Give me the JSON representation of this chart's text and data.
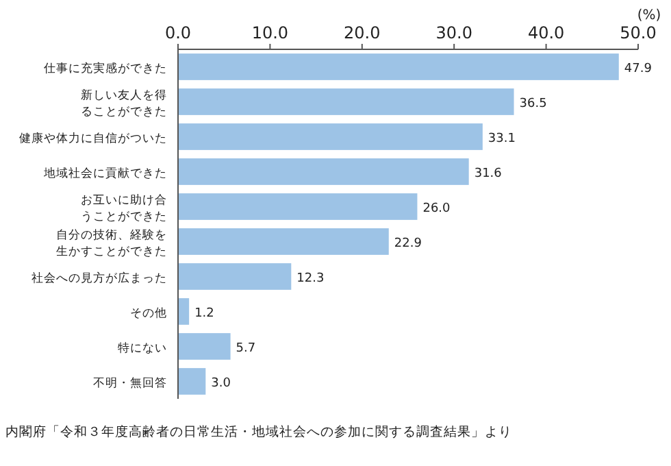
{
  "chart_data": {
    "type": "bar",
    "orientation": "horizontal",
    "xlabel": "(%)",
    "categories": [
      "仕事に充実感ができた",
      "新しい友人を得ることができた",
      "健康や体力に自信がついた",
      "地域社会に貢献できた",
      "お互いに助け合うことができた",
      "自分の技術、経験を生かすことができた",
      "社会への見方が広まった",
      "その他",
      "特にない",
      "不明・無回答"
    ],
    "values": [
      47.9,
      36.5,
      33.1,
      31.6,
      26.0,
      22.9,
      12.3,
      1.2,
      5.7,
      3.0
    ],
    "value_labels": [
      "47.9",
      "36.5",
      "33.1",
      "31.6",
      "26.0",
      "22.9",
      "12.3",
      "1.2",
      "5.7",
      "3.0"
    ],
    "color": "#9dc3e6",
    "xlim": [
      0,
      50
    ],
    "xticks": [
      {
        "value": 0,
        "label": "0.0"
      },
      {
        "value": 10,
        "label": "10.0"
      },
      {
        "value": 20,
        "label": "20.0"
      },
      {
        "value": 30,
        "label": "30.0"
      },
      {
        "value": 40,
        "label": "40.0"
      },
      {
        "value": 50,
        "label": "50.0"
      }
    ],
    "annotations": [
      "内閣府「令和３年度高齢者の日常生活・地域社会への参加に関する調査結果」より"
    ]
  }
}
